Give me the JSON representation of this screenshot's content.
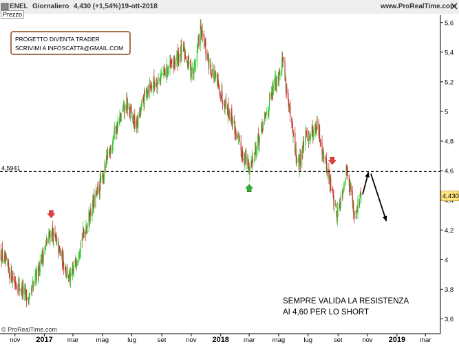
{
  "header": {
    "symbol": "ENEL",
    "period": "Giornaliero",
    "quote": "4,430 (+1,54%)",
    "date": "19-ott-2018",
    "site": "www.ProRealTime.com",
    "panel_label": "Prezzo"
  },
  "note_box": {
    "line1": "PROGETTO DIVENTA TRADER",
    "line2": "SCRIVIMI A INFOSCATTA@GMAIL.COM"
  },
  "annotation": {
    "line1": "SEMPRE VALIDA LA RESISTENZA",
    "line2": "AI 4,60 PER LO SHORT"
  },
  "copyright": "© ProRealTime.com",
  "colors": {
    "up_candle": "#33cc33",
    "down_candle": "#cc3333",
    "axis": "#000000",
    "grid": "#cccccc",
    "note_border": "#8b4513",
    "price_badge": "#ffe680"
  },
  "chart_data": {
    "type": "candlestick",
    "title": "",
    "ylim": [
      3.5,
      5.65
    ],
    "y_ticks": [
      3.6,
      3.8,
      4,
      4.2,
      4.4,
      4.6,
      4.8,
      5,
      5.2,
      5.4,
      5.6
    ],
    "y_tick_labels": [
      "3,6",
      "3,8",
      "4",
      "4,2",
      "4,4",
      "4,6",
      "4,8",
      "5",
      "5,2",
      "5,4",
      "5,6"
    ],
    "x_ticks": [
      {
        "label": "nov",
        "date": "2016-11-01",
        "bold": false
      },
      {
        "label": "2017",
        "date": "2017-01-01",
        "bold": true
      },
      {
        "label": "mar",
        "date": "2017-03-01",
        "bold": false
      },
      {
        "label": "mag",
        "date": "2017-05-01",
        "bold": false
      },
      {
        "label": "lug",
        "date": "2017-07-01",
        "bold": false
      },
      {
        "label": "set",
        "date": "2017-09-01",
        "bold": false
      },
      {
        "label": "nov",
        "date": "2017-11-01",
        "bold": false
      },
      {
        "label": "2018",
        "date": "2018-01-01",
        "bold": true
      },
      {
        "label": "mar",
        "date": "2018-03-01",
        "bold": false
      },
      {
        "label": "mag",
        "date": "2018-05-01",
        "bold": false
      },
      {
        "label": "lug",
        "date": "2018-07-01",
        "bold": false
      },
      {
        "label": "set",
        "date": "2018-09-01",
        "bold": false
      },
      {
        "label": "nov",
        "date": "2018-11-01",
        "bold": false
      },
      {
        "label": "2019",
        "date": "2019-01-01",
        "bold": true
      },
      {
        "label": "mar",
        "date": "2019-03-01",
        "bold": false
      }
    ],
    "x_range": [
      "2016-10-01",
      "2019-04-01"
    ],
    "last_close": "4,430",
    "last_close_value": 4.43,
    "resistance": {
      "value": 4.5941,
      "label": "4,5941"
    },
    "close_path": [
      {
        "date": "2016-10-01",
        "close": 4.05
      },
      {
        "date": "2016-10-15",
        "close": 3.95
      },
      {
        "date": "2016-11-01",
        "close": 3.85
      },
      {
        "date": "2016-11-15",
        "close": 3.8
      },
      {
        "date": "2016-12-01",
        "close": 3.72
      },
      {
        "date": "2016-12-20",
        "close": 3.95
      },
      {
        "date": "2017-01-15",
        "close": 4.2
      },
      {
        "date": "2017-02-05",
        "close": 4.02
      },
      {
        "date": "2017-02-25",
        "close": 3.85
      },
      {
        "date": "2017-03-15",
        "close": 4.1
      },
      {
        "date": "2017-04-10",
        "close": 4.35
      },
      {
        "date": "2017-05-01",
        "close": 4.55
      },
      {
        "date": "2017-05-25",
        "close": 4.85
      },
      {
        "date": "2017-06-20",
        "close": 5.05
      },
      {
        "date": "2017-07-10",
        "close": 4.9
      },
      {
        "date": "2017-08-01",
        "close": 5.15
      },
      {
        "date": "2017-08-25",
        "close": 5.22
      },
      {
        "date": "2017-09-20",
        "close": 5.3
      },
      {
        "date": "2017-10-15",
        "close": 5.42
      },
      {
        "date": "2017-11-05",
        "close": 5.25
      },
      {
        "date": "2017-11-20",
        "close": 5.55
      },
      {
        "date": "2017-12-10",
        "close": 5.3
      },
      {
        "date": "2018-01-05",
        "close": 5.1
      },
      {
        "date": "2018-01-25",
        "close": 4.95
      },
      {
        "date": "2018-02-10",
        "close": 4.75
      },
      {
        "date": "2018-03-01",
        "close": 4.62
      },
      {
        "date": "2018-03-25",
        "close": 4.85
      },
      {
        "date": "2018-04-20",
        "close": 5.15
      },
      {
        "date": "2018-05-10",
        "close": 5.35
      },
      {
        "date": "2018-05-25",
        "close": 4.95
      },
      {
        "date": "2018-06-10",
        "close": 4.62
      },
      {
        "date": "2018-06-25",
        "close": 4.82
      },
      {
        "date": "2018-07-20",
        "close": 4.9
      },
      {
        "date": "2018-08-10",
        "close": 4.6
      },
      {
        "date": "2018-08-30",
        "close": 4.3
      },
      {
        "date": "2018-09-20",
        "close": 4.62
      },
      {
        "date": "2018-10-05",
        "close": 4.3
      },
      {
        "date": "2018-10-19",
        "close": 4.43
      }
    ],
    "markers": [
      {
        "type": "down-arrow",
        "date": "2017-01-15",
        "value": 4.3
      },
      {
        "type": "up-arrow",
        "date": "2018-03-01",
        "value": 4.49
      },
      {
        "type": "down-arrow",
        "date": "2018-08-20",
        "value": 4.66
      }
    ],
    "forecast_arrows": [
      {
        "from": {
          "date": "2018-10-22",
          "value": 4.44
        },
        "to": {
          "date": "2018-11-03",
          "value": 4.59
        }
      },
      {
        "from": {
          "date": "2018-11-08",
          "value": 4.58
        },
        "to": {
          "date": "2018-12-10",
          "value": 4.26
        }
      }
    ]
  }
}
